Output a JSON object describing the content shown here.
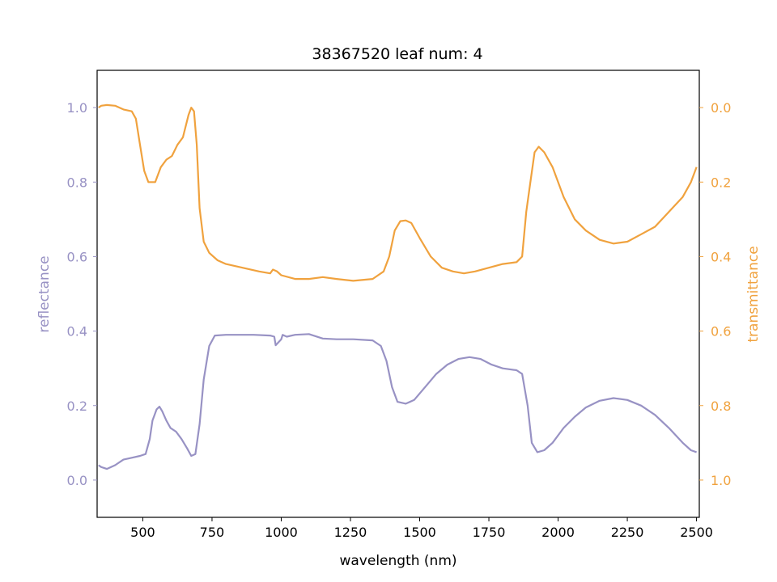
{
  "chart_data": {
    "type": "line",
    "title": "38367520 leaf num: 4",
    "xlabel": "wavelength (nm)",
    "xlim": [
      335,
      2510
    ],
    "x_ticks": [
      500,
      750,
      1000,
      1250,
      1500,
      1750,
      2000,
      2250,
      2500
    ],
    "grid": false,
    "series": [
      {
        "name": "reflectance",
        "axis": "left",
        "color": "#9892c4",
        "points": [
          [
            340,
            0.04
          ],
          [
            350,
            0.035
          ],
          [
            370,
            0.03
          ],
          [
            400,
            0.04
          ],
          [
            430,
            0.055
          ],
          [
            460,
            0.06
          ],
          [
            490,
            0.065
          ],
          [
            510,
            0.07
          ],
          [
            525,
            0.11
          ],
          [
            535,
            0.16
          ],
          [
            550,
            0.19
          ],
          [
            560,
            0.197
          ],
          [
            570,
            0.185
          ],
          [
            585,
            0.16
          ],
          [
            600,
            0.14
          ],
          [
            620,
            0.13
          ],
          [
            640,
            0.11
          ],
          [
            660,
            0.085
          ],
          [
            675,
            0.065
          ],
          [
            690,
            0.07
          ],
          [
            705,
            0.15
          ],
          [
            720,
            0.27
          ],
          [
            740,
            0.36
          ],
          [
            760,
            0.388
          ],
          [
            800,
            0.39
          ],
          [
            900,
            0.39
          ],
          [
            960,
            0.388
          ],
          [
            975,
            0.385
          ],
          [
            980,
            0.362
          ],
          [
            990,
            0.37
          ],
          [
            1000,
            0.378
          ],
          [
            1005,
            0.39
          ],
          [
            1020,
            0.385
          ],
          [
            1050,
            0.39
          ],
          [
            1100,
            0.392
          ],
          [
            1150,
            0.38
          ],
          [
            1200,
            0.378
          ],
          [
            1260,
            0.378
          ],
          [
            1330,
            0.375
          ],
          [
            1360,
            0.36
          ],
          [
            1380,
            0.32
          ],
          [
            1400,
            0.25
          ],
          [
            1420,
            0.21
          ],
          [
            1450,
            0.205
          ],
          [
            1480,
            0.215
          ],
          [
            1520,
            0.25
          ],
          [
            1560,
            0.285
          ],
          [
            1600,
            0.31
          ],
          [
            1640,
            0.325
          ],
          [
            1680,
            0.33
          ],
          [
            1720,
            0.325
          ],
          [
            1760,
            0.31
          ],
          [
            1800,
            0.3
          ],
          [
            1850,
            0.295
          ],
          [
            1870,
            0.285
          ],
          [
            1890,
            0.2
          ],
          [
            1905,
            0.1
          ],
          [
            1925,
            0.075
          ],
          [
            1950,
            0.08
          ],
          [
            1980,
            0.1
          ],
          [
            2020,
            0.14
          ],
          [
            2060,
            0.17
          ],
          [
            2100,
            0.195
          ],
          [
            2150,
            0.213
          ],
          [
            2200,
            0.22
          ],
          [
            2250,
            0.215
          ],
          [
            2300,
            0.2
          ],
          [
            2350,
            0.175
          ],
          [
            2400,
            0.14
          ],
          [
            2450,
            0.1
          ],
          [
            2480,
            0.08
          ],
          [
            2500,
            0.075
          ]
        ]
      },
      {
        "name": "transmittance",
        "axis": "right",
        "color": "#f0a23e",
        "points": [
          [
            340,
            0.0
          ],
          [
            350,
            -0.005
          ],
          [
            370,
            -0.007
          ],
          [
            400,
            -0.005
          ],
          [
            430,
            0.005
          ],
          [
            460,
            0.01
          ],
          [
            475,
            0.03
          ],
          [
            490,
            0.1
          ],
          [
            505,
            0.17
          ],
          [
            520,
            0.2
          ],
          [
            545,
            0.2
          ],
          [
            565,
            0.16
          ],
          [
            585,
            0.14
          ],
          [
            605,
            0.13
          ],
          [
            625,
            0.1
          ],
          [
            645,
            0.08
          ],
          [
            665,
            0.02
          ],
          [
            675,
            0.0
          ],
          [
            685,
            0.01
          ],
          [
            695,
            0.1
          ],
          [
            705,
            0.27
          ],
          [
            720,
            0.36
          ],
          [
            740,
            0.39
          ],
          [
            770,
            0.41
          ],
          [
            800,
            0.42
          ],
          [
            860,
            0.43
          ],
          [
            920,
            0.44
          ],
          [
            960,
            0.445
          ],
          [
            970,
            0.435
          ],
          [
            985,
            0.44
          ],
          [
            1000,
            0.45
          ],
          [
            1050,
            0.46
          ],
          [
            1100,
            0.46
          ],
          [
            1150,
            0.455
          ],
          [
            1200,
            0.46
          ],
          [
            1260,
            0.465
          ],
          [
            1330,
            0.46
          ],
          [
            1370,
            0.44
          ],
          [
            1390,
            0.4
          ],
          [
            1410,
            0.33
          ],
          [
            1430,
            0.305
          ],
          [
            1450,
            0.303
          ],
          [
            1470,
            0.31
          ],
          [
            1500,
            0.35
          ],
          [
            1540,
            0.4
          ],
          [
            1580,
            0.43
          ],
          [
            1620,
            0.44
          ],
          [
            1660,
            0.445
          ],
          [
            1700,
            0.44
          ],
          [
            1750,
            0.43
          ],
          [
            1800,
            0.42
          ],
          [
            1850,
            0.415
          ],
          [
            1870,
            0.4
          ],
          [
            1885,
            0.28
          ],
          [
            1900,
            0.2
          ],
          [
            1915,
            0.12
          ],
          [
            1930,
            0.105
          ],
          [
            1950,
            0.12
          ],
          [
            1980,
            0.16
          ],
          [
            2020,
            0.24
          ],
          [
            2060,
            0.3
          ],
          [
            2100,
            0.33
          ],
          [
            2150,
            0.355
          ],
          [
            2200,
            0.365
          ],
          [
            2250,
            0.36
          ],
          [
            2300,
            0.34
          ],
          [
            2350,
            0.32
          ],
          [
            2400,
            0.28
          ],
          [
            2450,
            0.24
          ],
          [
            2480,
            0.2
          ],
          [
            2500,
            0.16
          ]
        ]
      }
    ],
    "y_left": {
      "label": "reflectance",
      "color": "#9892c4",
      "lim": [
        -0.1,
        1.1
      ],
      "ticks": [
        0.0,
        0.2,
        0.4,
        0.6,
        0.8,
        1.0
      ],
      "tick_labels": [
        "0.0",
        "0.2",
        "0.4",
        "0.6",
        "0.8",
        "1.0"
      ]
    },
    "y_right": {
      "label": "transmittance",
      "color": "#f0a23e",
      "lim": [
        -0.1,
        1.1
      ],
      "inverted": true,
      "ticks": [
        0.0,
        0.2,
        0.4,
        0.6,
        0.8,
        1.0
      ],
      "tick_labels": [
        "0.0",
        "0.2",
        "0.4",
        "0.6",
        "0.8",
        "1.0"
      ]
    }
  }
}
